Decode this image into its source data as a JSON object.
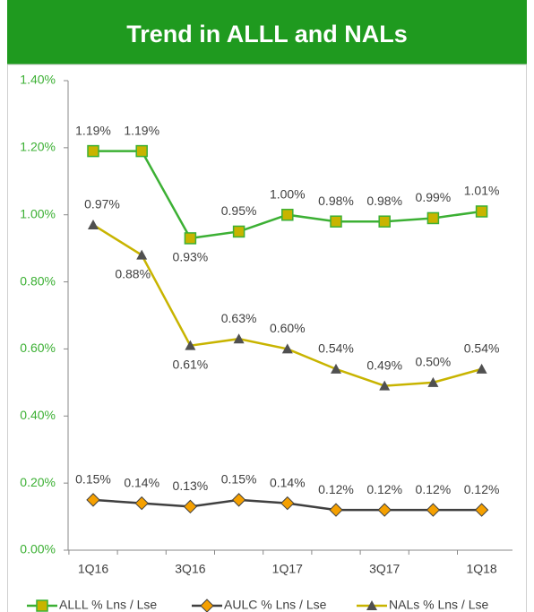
{
  "chart_data": {
    "type": "line",
    "title": "Trend in ALLL and NALs",
    "categories": [
      "1Q16",
      null,
      "3Q16",
      null,
      "1Q17",
      null,
      "3Q17",
      null,
      "1Q18"
    ],
    "series": [
      {
        "name": "ALLL % Lns / Lse",
        "color": "#3cb034",
        "marker_color": "#c8b400",
        "marker": "square",
        "values": [
          1.19,
          1.19,
          0.93,
          0.95,
          1.0,
          0.98,
          0.98,
          0.99,
          1.01
        ],
        "value_labels": [
          "1.19%",
          "1.19%",
          "0.93%",
          "0.95%",
          "1.00%",
          "0.98%",
          "0.98%",
          "0.99%",
          "1.01%"
        ]
      },
      {
        "name": "AULC % Lns / Lse",
        "color": "#404040",
        "marker_color": "#f5a000",
        "marker": "diamond",
        "values": [
          0.15,
          0.14,
          0.13,
          0.15,
          0.14,
          0.12,
          0.12,
          0.12,
          0.12
        ],
        "value_labels": [
          "0.15%",
          "0.14%",
          "0.13%",
          "0.15%",
          "0.14%",
          "0.12%",
          "0.12%",
          "0.12%",
          "0.12%"
        ]
      },
      {
        "name": "NALs % Lns / Lse",
        "color": "#c8b400",
        "marker_color": "#505050",
        "marker": "triangle",
        "values": [
          0.97,
          0.88,
          0.61,
          0.63,
          0.6,
          0.54,
          0.49,
          0.5,
          0.54
        ],
        "value_labels": [
          "0.97%",
          "0.88%",
          "0.61%",
          "0.63%",
          "0.60%",
          "0.54%",
          "0.49%",
          "0.50%",
          "0.54%"
        ]
      }
    ],
    "ylim": [
      0,
      1.4
    ],
    "yticks": [
      {
        "value": 0,
        "label": "0.00%"
      },
      {
        "value": 0.2,
        "label": "0.20%"
      },
      {
        "value": 0.4,
        "label": "0.40%"
      },
      {
        "value": 0.6,
        "label": "0.60%"
      },
      {
        "value": 0.8,
        "label": "0.80%"
      },
      {
        "value": 1.0,
        "label": "1.00%"
      },
      {
        "value": 1.2,
        "label": "1.20%"
      },
      {
        "value": 1.4,
        "label": "1.40%"
      }
    ],
    "legend": "bottom"
  }
}
